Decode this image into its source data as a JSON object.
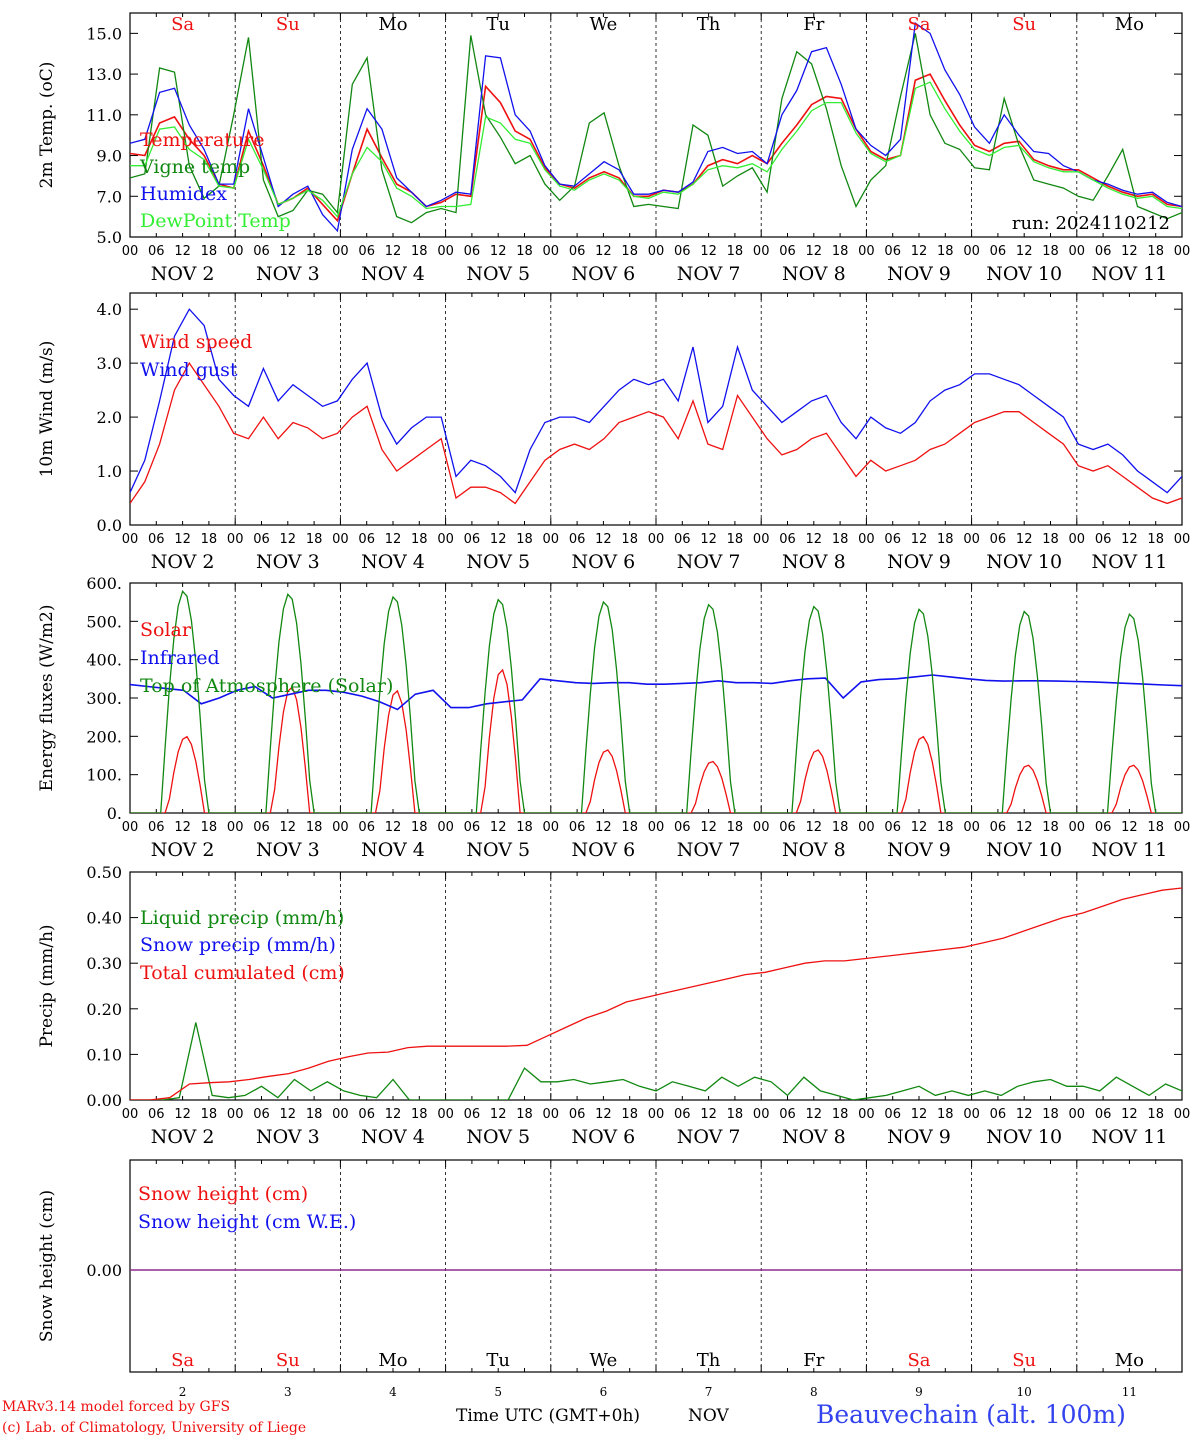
{
  "days": [
    "Sa",
    "Su",
    "Mo",
    "Tu",
    "We",
    "Th",
    "Fr",
    "Sa",
    "Su",
    "Mo"
  ],
  "day_colors": [
    "#ee1111",
    "#ee1111",
    "#000000",
    "#000000",
    "#000000",
    "#000000",
    "#000000",
    "#ee1111",
    "#ee1111",
    "#000000"
  ],
  "dates": [
    "NOV  2",
    "NOV  3",
    "NOV  4",
    "NOV  5",
    "NOV  6",
    "NOV  7",
    "NOV  8",
    "NOV  9",
    "NOV 10",
    "NOV 11"
  ],
  "date_numbers": [
    "2",
    "3",
    "4",
    "5",
    "6",
    "7",
    "8",
    "9",
    "10",
    "11"
  ],
  "hour_ticks": [
    "00",
    "06",
    "12",
    "18"
  ],
  "last_hour_tick": "00",
  "footer": {
    "model": "MARv3.14 model forced by GFS",
    "lab": "(c) Lab. of Climatology, University of Liege",
    "xlabel": "Time UTC (GMT+0h)",
    "month": "NOV",
    "station": "Beauvechain (alt. 100m)"
  },
  "colors": {
    "red": "#ee1111",
    "green": "#118811",
    "blue": "#1111ee",
    "lightgreen": "#33ee33",
    "purple": "#882288"
  },
  "chart_data": [
    {
      "type": "line",
      "ylabel": "2m Temp. (oC)",
      "ylim": [
        5,
        16
      ],
      "yticks": [
        "5.0",
        "7.0",
        "9.0",
        "11.0",
        "13.0",
        "15.0"
      ],
      "ytick_values": [
        5,
        7,
        9,
        11,
        13,
        15
      ],
      "annotation": "run: 2024110212",
      "x": "hours from NOV 2 00 UTC (step 6h)",
      "series": [
        {
          "name": "Temperature",
          "color": "#ee1111",
          "values": [
            9.1,
            9.0,
            10.6,
            10.9,
            9.8,
            9.0,
            7.6,
            7.4,
            10.2,
            8.5,
            6.6,
            6.9,
            7.4,
            6.6,
            5.8,
            8.1,
            10.3,
            8.9,
            7.6,
            7.2,
            6.5,
            6.7,
            7.1,
            7.0,
            12.4,
            11.6,
            10.2,
            9.8,
            8.4,
            7.6,
            7.4,
            7.9,
            8.2,
            7.9,
            7.0,
            7.0,
            7.3,
            7.2,
            7.6,
            8.5,
            8.8,
            8.6,
            9.0,
            8.6,
            9.6,
            10.5,
            11.5,
            11.9,
            11.8,
            10.3,
            9.2,
            8.8,
            9.0,
            12.7,
            13.0,
            11.7,
            10.5,
            9.5,
            9.2,
            9.6,
            9.7,
            8.8,
            8.5,
            8.3,
            8.3,
            7.9,
            7.5,
            7.2,
            7.0,
            7.1,
            6.6,
            6.5
          ]
        },
        {
          "name": "Vigne temp",
          "color": "#118811",
          "values": [
            7.9,
            8.1,
            13.3,
            13.1,
            8.5,
            6.9,
            7.5,
            11.0,
            14.8,
            7.8,
            6.0,
            6.3,
            7.3,
            7.1,
            6.2,
            12.5,
            13.8,
            8.3,
            6.0,
            5.7,
            6.2,
            6.4,
            6.2,
            14.9,
            11.0,
            9.9,
            8.6,
            9.0,
            7.6,
            6.8,
            7.5,
            10.6,
            11.1,
            8.5,
            6.5,
            6.6,
            6.5,
            6.4,
            10.5,
            10.0,
            7.5,
            8.0,
            8.4,
            7.2,
            11.8,
            14.1,
            13.5,
            11.3,
            8.5,
            6.5,
            7.8,
            8.5,
            11.9,
            15.0,
            11.0,
            9.6,
            9.3,
            8.4,
            8.3,
            11.8,
            9.5,
            7.8,
            7.6,
            7.4,
            7.0,
            6.8,
            8.0,
            9.3,
            6.5,
            6.2,
            5.9,
            6.2
          ]
        },
        {
          "name": "Humidex",
          "color": "#1111ee",
          "values": [
            9.6,
            9.8,
            12.1,
            12.3,
            10.5,
            9.3,
            7.6,
            7.6,
            11.3,
            8.9,
            6.5,
            7.1,
            7.5,
            6.1,
            5.3,
            9.3,
            11.3,
            10.3,
            7.9,
            7.2,
            6.5,
            6.8,
            7.2,
            7.1,
            13.9,
            13.8,
            11.0,
            10.2,
            8.5,
            7.6,
            7.5,
            8.1,
            8.7,
            8.3,
            7.1,
            7.1,
            7.3,
            7.2,
            7.7,
            9.2,
            9.4,
            9.1,
            9.2,
            8.6,
            11.0,
            12.2,
            14.1,
            14.3,
            12.5,
            10.3,
            9.5,
            9.0,
            9.8,
            15.5,
            15.0,
            13.2,
            12.0,
            10.4,
            9.6,
            11.0,
            10.0,
            9.2,
            9.1,
            8.5,
            8.2,
            7.8,
            7.6,
            7.3,
            7.1,
            7.2,
            6.7,
            6.5
          ]
        },
        {
          "name": "DewPoint Temp",
          "color": "#33ee33",
          "values": [
            8.5,
            8.5,
            10.3,
            10.4,
            9.3,
            8.8,
            7.5,
            7.4,
            9.8,
            8.3,
            6.6,
            6.9,
            7.3,
            6.8,
            6.0,
            8.1,
            9.4,
            8.7,
            7.4,
            7.0,
            6.4,
            6.5,
            6.5,
            6.6,
            10.9,
            10.6,
            9.8,
            9.6,
            8.3,
            7.5,
            7.3,
            7.8,
            8.1,
            7.8,
            7.0,
            6.9,
            7.2,
            7.1,
            7.6,
            8.3,
            8.5,
            8.4,
            8.6,
            8.2,
            9.3,
            10.2,
            11.2,
            11.6,
            11.6,
            10.1,
            9.1,
            8.7,
            9.0,
            12.3,
            12.6,
            11.3,
            10.2,
            9.3,
            9.0,
            9.4,
            9.5,
            8.7,
            8.4,
            8.2,
            8.2,
            7.8,
            7.4,
            7.1,
            6.9,
            7.0,
            6.5,
            6.4
          ]
        }
      ]
    },
    {
      "type": "line",
      "ylabel": "10m Wind (m/s)",
      "ylim": [
        0,
        4.3
      ],
      "yticks": [
        "0.0",
        "1.0",
        "2.0",
        "3.0",
        "4.0"
      ],
      "ytick_values": [
        0,
        1,
        2,
        3,
        4
      ],
      "series": [
        {
          "name": "Wind speed",
          "color": "#ee1111",
          "values": [
            0.4,
            0.8,
            1.5,
            2.5,
            3.0,
            2.6,
            2.2,
            1.7,
            1.6,
            2.0,
            1.6,
            1.9,
            1.8,
            1.6,
            1.7,
            2.0,
            2.2,
            1.4,
            1.0,
            1.2,
            1.4,
            1.6,
            0.5,
            0.7,
            0.7,
            0.6,
            0.4,
            0.8,
            1.2,
            1.4,
            1.5,
            1.4,
            1.6,
            1.9,
            2.0,
            2.1,
            2.0,
            1.6,
            2.3,
            1.5,
            1.4,
            2.4,
            2.0,
            1.6,
            1.3,
            1.4,
            1.6,
            1.7,
            1.3,
            0.9,
            1.2,
            1.0,
            1.1,
            1.2,
            1.4,
            1.5,
            1.7,
            1.9,
            2.0,
            2.1,
            2.1,
            1.9,
            1.7,
            1.5,
            1.1,
            1.0,
            1.1,
            0.9,
            0.7,
            0.5,
            0.4,
            0.5
          ]
        },
        {
          "name": "Wind gust",
          "color": "#1111ee",
          "values": [
            0.6,
            1.2,
            2.3,
            3.5,
            4.0,
            3.7,
            2.7,
            2.4,
            2.2,
            2.9,
            2.3,
            2.6,
            2.4,
            2.2,
            2.3,
            2.7,
            3.0,
            2.0,
            1.5,
            1.8,
            2.0,
            2.0,
            0.9,
            1.2,
            1.1,
            0.9,
            0.6,
            1.4,
            1.9,
            2.0,
            2.0,
            1.9,
            2.2,
            2.5,
            2.7,
            2.6,
            2.7,
            2.3,
            3.3,
            1.9,
            2.2,
            3.3,
            2.5,
            2.2,
            1.9,
            2.1,
            2.3,
            2.4,
            1.9,
            1.6,
            2.0,
            1.8,
            1.7,
            1.9,
            2.3,
            2.5,
            2.6,
            2.8,
            2.8,
            2.7,
            2.6,
            2.4,
            2.2,
            2.0,
            1.5,
            1.4,
            1.5,
            1.3,
            1.0,
            0.8,
            0.6,
            0.9
          ]
        }
      ]
    },
    {
      "type": "line",
      "ylabel": "Energy fluxes (W/m2)",
      "ylim": [
        0,
        600
      ],
      "yticks": [
        "0.",
        "100.",
        "200.",
        "300.",
        "400.",
        "500.",
        "600."
      ],
      "ytick_values": [
        0,
        100,
        200,
        300,
        400,
        500,
        600
      ],
      "series": [
        {
          "name": "Solar",
          "color": "#ee1111",
          "peaks": [
            200,
            330,
            320,
            375,
            165,
            135,
            165,
            200,
            125,
            125
          ]
        },
        {
          "name": "Infrared",
          "color": "#1111ee",
          "values": [
            335,
            330,
            325,
            320,
            285,
            300,
            320,
            330,
            300,
            310,
            320,
            320,
            315,
            305,
            290,
            270,
            310,
            320,
            275,
            275,
            285,
            290,
            295,
            350,
            345,
            340,
            338,
            340,
            340,
            336,
            336,
            338,
            340,
            345,
            340,
            340,
            338,
            345,
            350,
            352,
            300,
            342,
            348,
            350,
            355,
            360,
            355,
            350,
            346,
            344,
            345,
            345,
            344,
            343,
            342,
            340,
            338,
            336,
            334,
            332
          ]
        },
        {
          "name": "Top of Atmosphere (Solar)",
          "color": "#118811",
          "peaks": [
            580,
            572,
            565,
            558,
            552,
            545,
            540,
            533,
            527,
            520
          ]
        }
      ]
    },
    {
      "type": "line",
      "ylabel": "Precip (mm/h)",
      "ylim": [
        0,
        0.5
      ],
      "yticks": [
        "0.00",
        "0.10",
        "0.20",
        "0.30",
        "0.40",
        "0.50"
      ],
      "ytick_values": [
        0,
        0.1,
        0.2,
        0.3,
        0.4,
        0.5
      ],
      "series": [
        {
          "name": "Liquid precip (mm/h)",
          "color": "#118811",
          "values": [
            0,
            0,
            0,
            0.005,
            0.17,
            0.01,
            0.005,
            0.01,
            0.03,
            0.005,
            0.045,
            0.02,
            0.04,
            0.02,
            0.01,
            0.005,
            0.045,
            0,
            0,
            0,
            0,
            0,
            0,
            0,
            0.07,
            0.04,
            0.04,
            0.045,
            0.035,
            0.04,
            0.045,
            0.03,
            0.02,
            0.04,
            0.03,
            0.02,
            0.05,
            0.03,
            0.05,
            0.04,
            0.01,
            0.05,
            0.02,
            0.01,
            0,
            0.005,
            0.01,
            0.02,
            0.03,
            0.01,
            0.02,
            0.01,
            0.02,
            0.01,
            0.03,
            0.04,
            0.045,
            0.03,
            0.03,
            0.02,
            0.05,
            0.03,
            0.01,
            0.035,
            0.02
          ]
        },
        {
          "name": "Snow precip (mm/h)",
          "color": "#1111ee",
          "values": []
        },
        {
          "name": "Total cumulated (cm)",
          "color": "#ee1111",
          "values": [
            0,
            0,
            0.005,
            0.035,
            0.038,
            0.04,
            0.045,
            0.052,
            0.058,
            0.07,
            0.085,
            0.095,
            0.103,
            0.105,
            0.115,
            0.118,
            0.118,
            0.118,
            0.118,
            0.118,
            0.12,
            0.14,
            0.16,
            0.18,
            0.195,
            0.215,
            0.225,
            0.235,
            0.245,
            0.255,
            0.265,
            0.275,
            0.28,
            0.29,
            0.3,
            0.305,
            0.305,
            0.31,
            0.315,
            0.32,
            0.325,
            0.33,
            0.335,
            0.345,
            0.355,
            0.37,
            0.385,
            0.4,
            0.41,
            0.425,
            0.44,
            0.45,
            0.46,
            0.465
          ]
        }
      ]
    },
    {
      "type": "line",
      "ylabel": "Snow height (cm)",
      "yticks": [
        "0.00"
      ],
      "ytick_values": [
        0
      ],
      "series": [
        {
          "name": "Snow height (cm)",
          "color": "#ee1111",
          "values": [
            0,
            0
          ]
        },
        {
          "name": "Snow height (cm W.E.)",
          "color": "#1111ee",
          "values": [
            0,
            0
          ]
        }
      ]
    }
  ]
}
